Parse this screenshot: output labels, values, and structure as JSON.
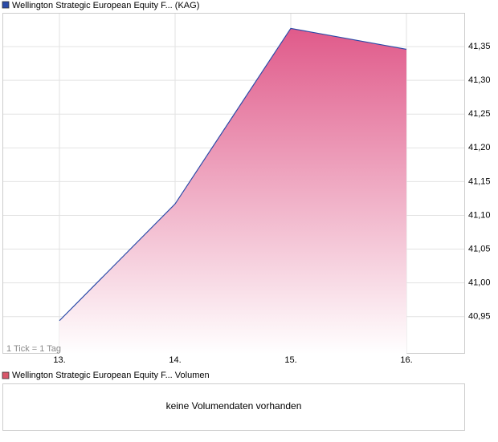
{
  "chart_data": {
    "type": "area",
    "legend": "Wellington Strategic European Equity F... (KAG)",
    "annotation": "1 Tick = 1 Tag",
    "categories": [
      "13.",
      "14.",
      "15.",
      "16."
    ],
    "series": [
      {
        "name": "Wellington Strategic European Equity F... (KAG)",
        "color": "#e05a8a",
        "line_color": "#2a4aa8",
        "values": [
          40.944,
          41.117,
          41.377,
          41.346
        ]
      }
    ],
    "ylim": [
      40.895,
      41.4
    ],
    "yticks": [
      {
        "value": 40.95,
        "label": "40,95"
      },
      {
        "value": 41.0,
        "label": "41,00"
      },
      {
        "value": 41.05,
        "label": "41,05"
      },
      {
        "value": 41.1,
        "label": "41,10"
      },
      {
        "value": 41.15,
        "label": "41,15"
      },
      {
        "value": 41.2,
        "label": "41,20"
      },
      {
        "value": 41.25,
        "label": "41,25"
      },
      {
        "value": 41.3,
        "label": "41,30"
      },
      {
        "value": 41.35,
        "label": "41,35"
      }
    ],
    "grid": true
  },
  "volume": {
    "legend": "Wellington Strategic European Equity F... Volumen",
    "message": "keine Volumendaten vorhanden",
    "color": "#d9576a"
  }
}
